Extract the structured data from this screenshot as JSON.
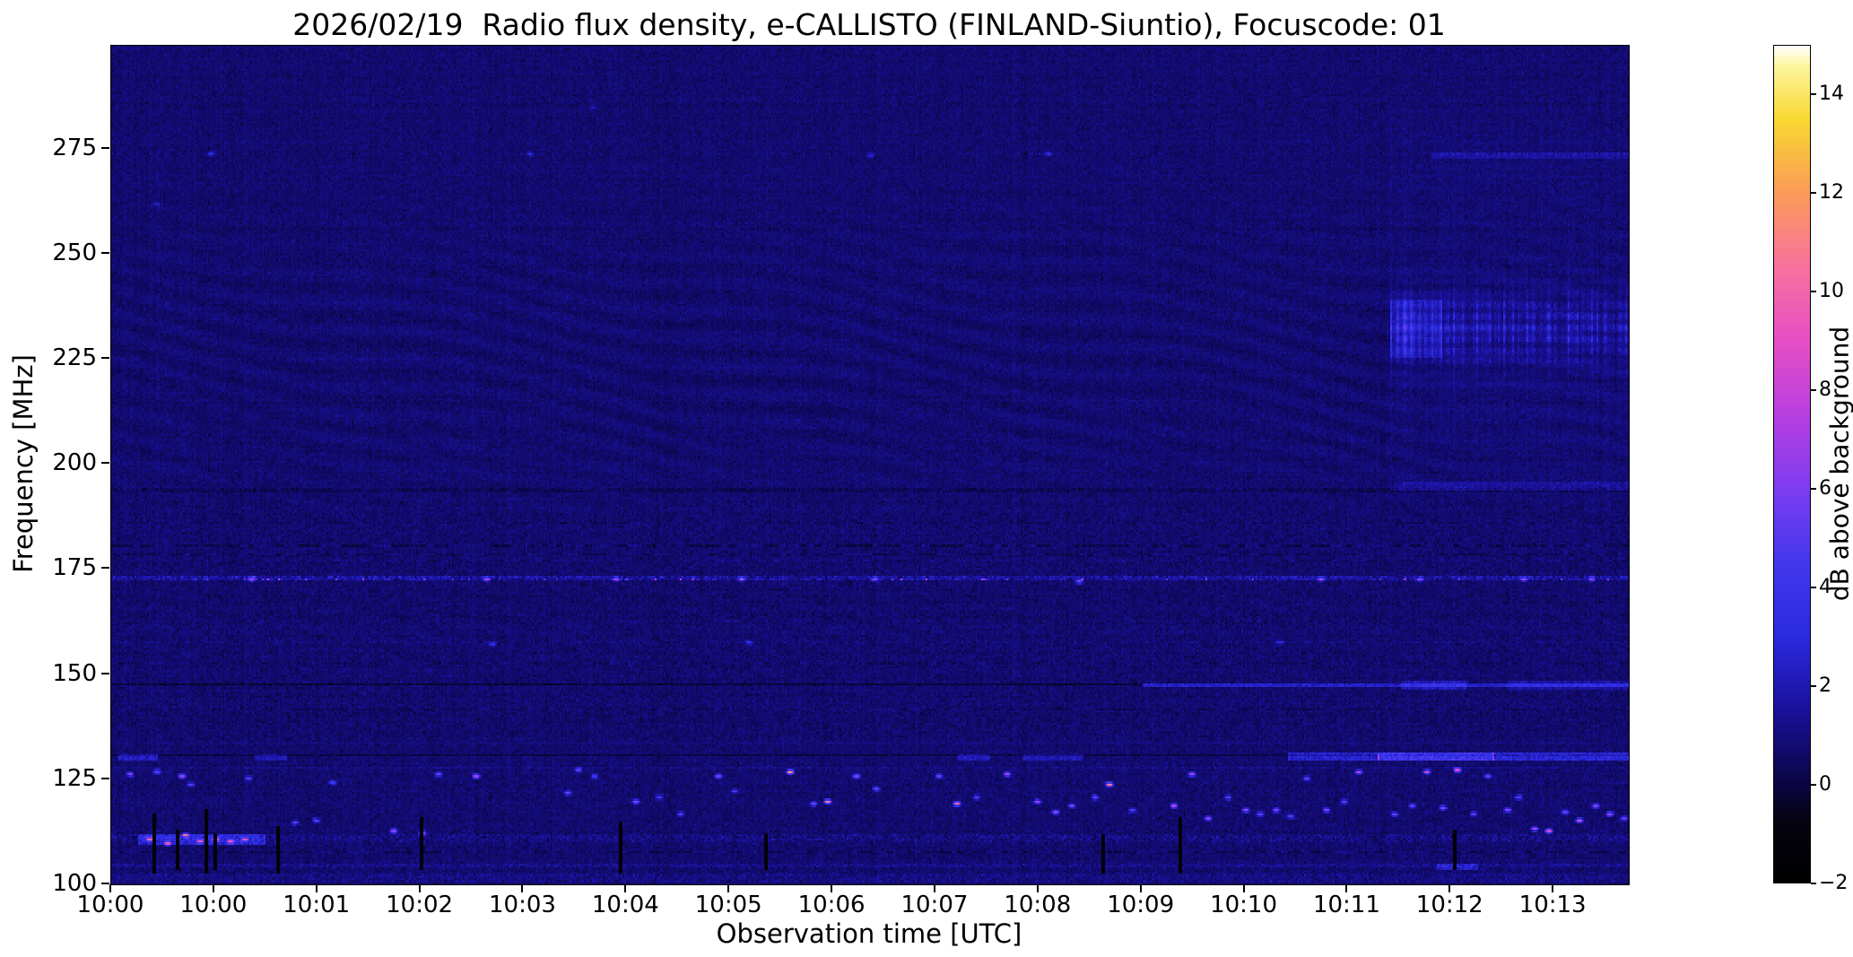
{
  "chart_data": {
    "type": "heatmap",
    "title": "2026/02/19  Radio flux density, e-CALLISTO (FINLAND-Siuntio), Focuscode: 01",
    "xlabel": "Observation time [UTC]",
    "ylabel": "Frequency [MHz]",
    "colorbar_label": "dB above background",
    "x_ticks": [
      "10:00",
      "10:00",
      "10:01",
      "10:02",
      "10:03",
      "10:04",
      "10:05",
      "10:06",
      "10:07",
      "10:08",
      "10:09",
      "10:10",
      "10:11",
      "10:12",
      "10:13"
    ],
    "x_axis_total_minutes": 14.73,
    "y_ticks": [
      275,
      250,
      225,
      200,
      175,
      150,
      125,
      100
    ],
    "ylim": [
      100,
      299.5
    ],
    "colorbar_ticks": [
      -2,
      0,
      2,
      4,
      6,
      8,
      10,
      12,
      14
    ],
    "colorbar_lim": [
      -2,
      15
    ],
    "grid_on": false,
    "legend": "none",
    "colormap_stops": [
      [
        -2,
        "#000000"
      ],
      [
        -0.8,
        "#05030f"
      ],
      [
        0,
        "#0b0545"
      ],
      [
        1.5,
        "#1a119b"
      ],
      [
        3,
        "#2b2be0"
      ],
      [
        4.5,
        "#4338ee"
      ],
      [
        6,
        "#7e3cf0"
      ],
      [
        7.5,
        "#b83fe0"
      ],
      [
        9,
        "#e44fc5"
      ],
      [
        10.5,
        "#f8719e"
      ],
      [
        12,
        "#fb9b59"
      ],
      [
        13.5,
        "#f8d831"
      ],
      [
        14.6,
        "#fdf6a0"
      ],
      [
        15,
        "#ffffff"
      ]
    ],
    "render": {
      "seed": 20260219,
      "grid": {
        "nt": 846,
        "nf": 400
      },
      "background": {
        "base": 0.72,
        "noise": 0.22,
        "col_noise": 0.06,
        "row_noise": 0.045
      },
      "speckle_bands": [
        [
          134,
          192,
          0.14
        ],
        [
          102,
          130,
          0.12
        ],
        [
          196,
          262,
          0.05
        ]
      ],
      "ripples": [
        {
          "f_center": 228,
          "f_sigma": 30,
          "amp": 0.2,
          "k": 1.05,
          "wobble": 2.4,
          "wobble_t": 26,
          "drift": 60
        },
        {
          "f_center": 205,
          "f_sigma": 12,
          "amp": 0.1,
          "k": 1.2,
          "wobble": 1.5,
          "wobble_t": 40,
          "drift": 85
        },
        {
          "f_center": 163,
          "f_sigma": 14,
          "amp": 0.07,
          "k": 1.4,
          "wobble": 1.2,
          "wobble_t": 55,
          "drift": 110
        }
      ],
      "hlines": [
        {
          "f": 172.7,
          "h": 1.1,
          "base": 0.95,
          "speckle": 0.5,
          "blip": [
            0.05,
            2.5,
            6.5
          ]
        },
        {
          "f": 176.9,
          "h": 0.5,
          "base": 0.28,
          "dash": true
        },
        {
          "f": 178.7,
          "h": 0.5,
          "base": -0.45,
          "dash": true
        },
        {
          "f": 180.5,
          "h": 0.5,
          "base": -0.5,
          "dash": true
        },
        {
          "f": 186,
          "h": 0.5,
          "base": -0.3,
          "dash": true
        },
        {
          "f": 193.8,
          "h": 0.9,
          "base": -0.35,
          "speckle": 0.2
        },
        {
          "f": 152.8,
          "h": 0.5,
          "base": -0.25,
          "dash": true
        },
        {
          "f": 157.6,
          "h": 0.5,
          "base": 0.22,
          "speckle": 0.35
        },
        {
          "f": 147.6,
          "h": 0.8,
          "base": -0.85,
          "t1": 0.68
        },
        {
          "f": 147.6,
          "h": 1,
          "base": 1.7,
          "t0": 0.68,
          "speckle": 0.25
        },
        {
          "f": 141.8,
          "h": 0.5,
          "base": -0.4,
          "dash": true
        },
        {
          "f": 138.3,
          "h": 0.5,
          "base": -0.25,
          "dash": true
        },
        {
          "f": 133.8,
          "h": 0.5,
          "base": 0.3
        },
        {
          "f": 130.6,
          "h": 0.8,
          "base": -0.75
        },
        {
          "f": 127.9,
          "h": 0.5,
          "base": 0.4,
          "speckle": 0.25
        },
        {
          "f": 110.9,
          "h": 1.8,
          "base": 0.3,
          "speckle": 0.35
        },
        {
          "f": 107.8,
          "h": 0.8,
          "base": -0.5,
          "dash": true
        },
        {
          "f": 104.6,
          "h": 0.9,
          "base": 0.45,
          "speckle": 0.25
        },
        {
          "f": 101.3,
          "h": 2,
          "base": 0.3,
          "speckle": 0.25
        },
        {
          "f": 273.8,
          "h": 0.8,
          "base": 0.12,
          "speckle": 0.2
        }
      ],
      "segments": [
        {
          "f": 110.9,
          "t0": 0.018,
          "t1": 0.1,
          "db": 2,
          "h": 2.2
        },
        {
          "f": 147.6,
          "t0": 0.85,
          "t1": 0.893,
          "db": 1.3,
          "h": 1.2
        },
        {
          "f": 147.6,
          "t0": 0.92,
          "t1": 1,
          "db": 0.9,
          "h": 1.2
        },
        {
          "f": 130.6,
          "t0": 0.005,
          "t1": 0.03,
          "db": 1.6,
          "h": 1
        },
        {
          "f": 130.6,
          "t0": 0.095,
          "t1": 0.115,
          "db": 1.2,
          "h": 1
        },
        {
          "f": 130.6,
          "t0": 0.558,
          "t1": 0.578,
          "db": 1.4,
          "h": 1
        },
        {
          "f": 130.6,
          "t0": 0.6,
          "t1": 0.64,
          "db": 1.2,
          "h": 1
        },
        {
          "f": 130.6,
          "t0": 0.775,
          "t1": 0.835,
          "db": 1.9,
          "h": 1.2
        },
        {
          "f": 130.6,
          "t0": 0.835,
          "t1": 0.91,
          "db": 3.3,
          "h": 1.4
        },
        {
          "f": 130.6,
          "t0": 0.91,
          "t1": 1,
          "db": 2.1,
          "h": 1.2
        },
        {
          "f": 195,
          "t0": 0.845,
          "t1": 1,
          "db": 0.8,
          "h": 1.1
        },
        {
          "f": 273.5,
          "t0": 0.87,
          "t1": 1,
          "db": 0.8,
          "h": 1.3
        },
        {
          "f": 104.6,
          "t0": 0.873,
          "t1": 0.9,
          "db": 1.6,
          "h": 1.1
        }
      ],
      "storm": {
        "t0": 0.843,
        "t1": 1,
        "f0": 190,
        "f1": 296,
        "core_f": 232.5,
        "core_sigma": 7,
        "amp": 2,
        "broad_f": 227,
        "broad_sigma": 24,
        "broad_amp": 0.5,
        "high_f": 272,
        "high_sigma": 16,
        "high_amp": 0.22,
        "lead_t1": 0.877,
        "lead_f0": 225,
        "lead_f1": 239,
        "lead_db": 1.2
      },
      "blips": [
        [
          0.012,
          126.5,
          6
        ],
        [
          0.03,
          127,
          5
        ],
        [
          0.046,
          126,
          6.5
        ],
        [
          0.052,
          124,
          4.5
        ],
        [
          0.09,
          125.2,
          4.5
        ],
        [
          0.145,
          124.5,
          4
        ],
        [
          0.215,
          126.5,
          5.5
        ],
        [
          0.24,
          126,
          6.8
        ],
        [
          0.025,
          111,
          7.5
        ],
        [
          0.037,
          110.2,
          6.8
        ],
        [
          0.048,
          112,
          8.2
        ],
        [
          0.058,
          110.5,
          7
        ],
        [
          0.068,
          111.2,
          7.8
        ],
        [
          0.078,
          110.6,
          7.2
        ],
        [
          0.088,
          111,
          6.3
        ],
        [
          0.185,
          112.8,
          6.5
        ],
        [
          0.205,
          112.4,
          7.3
        ],
        [
          0.12,
          115,
          4.8
        ],
        [
          0.135,
          115.4,
          5.2
        ],
        [
          0.3,
          122,
          5
        ],
        [
          0.307,
          127.5,
          4.2
        ],
        [
          0.318,
          126,
          4
        ],
        [
          0.345,
          120,
          6
        ],
        [
          0.36,
          121,
          4.2
        ],
        [
          0.375,
          117,
          4.5
        ],
        [
          0.4,
          126,
          5
        ],
        [
          0.41,
          122.5,
          4
        ],
        [
          0.447,
          127,
          11.5
        ],
        [
          0.462,
          119.5,
          5.5
        ],
        [
          0.472,
          119.8,
          10.8
        ],
        [
          0.49,
          126,
          5.5
        ],
        [
          0.503,
          123,
          4.2
        ],
        [
          0.545,
          126,
          5
        ],
        [
          0.557,
          119.5,
          10.3
        ],
        [
          0.57,
          121,
          4.5
        ],
        [
          0.59,
          126.5,
          7
        ],
        [
          0.61,
          120,
          6.5
        ],
        [
          0.622,
          117.5,
          6
        ],
        [
          0.632,
          119,
          5
        ],
        [
          0.648,
          121,
          5
        ],
        [
          0.657,
          124,
          11
        ],
        [
          0.672,
          118,
          4.5
        ],
        [
          0.7,
          119,
          7
        ],
        [
          0.712,
          126.5,
          7.5
        ],
        [
          0.722,
          116,
          6
        ],
        [
          0.735,
          121,
          4.5
        ],
        [
          0.747,
          118,
          6.5
        ],
        [
          0.757,
          117,
          5
        ],
        [
          0.767,
          118,
          6.2
        ],
        [
          0.777,
          116.5,
          5
        ],
        [
          0.787,
          125.5,
          5
        ],
        [
          0.8,
          118,
          6
        ],
        [
          0.812,
          120,
          4.5
        ],
        [
          0.822,
          126.8,
          7.2
        ],
        [
          0.845,
          117,
          5.5
        ],
        [
          0.857,
          119,
          4.5
        ],
        [
          0.867,
          127,
          8
        ],
        [
          0.877,
          118.5,
          6
        ],
        [
          0.887,
          127.5,
          8.3
        ],
        [
          0.897,
          117,
          5
        ],
        [
          0.907,
          126,
          5
        ],
        [
          0.92,
          118,
          6
        ],
        [
          0.927,
          121,
          4.5
        ],
        [
          0.937,
          113.5,
          7
        ],
        [
          0.947,
          113,
          7.8
        ],
        [
          0.957,
          117.5,
          5
        ],
        [
          0.967,
          115.5,
          8.3
        ],
        [
          0.977,
          119,
          6
        ],
        [
          0.987,
          117,
          6.5
        ],
        [
          0.996,
          116,
          5
        ],
        [
          0.065,
          274,
          2.2
        ],
        [
          0.275,
          274,
          2.4
        ],
        [
          0.5,
          273.5,
          2
        ],
        [
          0.617,
          274,
          2.2
        ],
        [
          0.317,
          285,
          1.5
        ],
        [
          0.03,
          262,
          1.4
        ],
        [
          0.092,
          172.8,
          6.3
        ],
        [
          0.247,
          172.6,
          6.6
        ],
        [
          0.332,
          172.6,
          4.8
        ],
        [
          0.415,
          172.8,
          5.2
        ],
        [
          0.502,
          172.8,
          5.4
        ],
        [
          0.637,
          172.5,
          5.6
        ],
        [
          0.797,
          172.7,
          5.8
        ],
        [
          0.862,
          172.8,
          5.3
        ],
        [
          0.93,
          172.7,
          5.5
        ],
        [
          0.975,
          172.6,
          5
        ],
        [
          0.25,
          157.5,
          2.6
        ],
        [
          0.42,
          158,
          3
        ],
        [
          0.77,
          157.8,
          2.8
        ]
      ],
      "dropouts": [
        [
          0.027,
          103,
          117
        ],
        [
          0.042,
          104,
          113
        ],
        [
          0.061,
          103,
          118
        ],
        [
          0.067,
          104,
          112
        ],
        [
          0.109,
          103,
          114
        ],
        [
          0.203,
          104,
          116
        ],
        [
          0.335,
          103,
          115
        ],
        [
          0.43,
          104,
          112
        ],
        [
          0.652,
          103,
          112
        ],
        [
          0.703,
          103,
          116
        ],
        [
          0.884,
          104,
          113
        ]
      ]
    }
  }
}
